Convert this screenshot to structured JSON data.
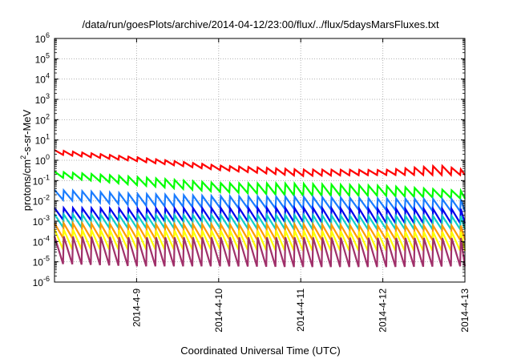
{
  "chart_data": {
    "type": "line",
    "title": "/data/run/goesPlots/archive/2014-04-12/23:00/flux/../flux/5daysMarsFluxes.txt",
    "xlabel": "Coordinated Universal Time (UTC)",
    "ylabel": {
      "prefix": "protons/cm",
      "superscript": "2",
      "suffix": "-s-sr-MeV"
    },
    "y_scale": "log",
    "ylim": [
      1e-06,
      1000000.0
    ],
    "y_ticks": [
      {
        "value": 1e-06,
        "base": "10",
        "exp": "-6"
      },
      {
        "value": 1e-05,
        "base": "10",
        "exp": "-5"
      },
      {
        "value": 0.0001,
        "base": "10",
        "exp": "-4"
      },
      {
        "value": 0.001,
        "base": "10",
        "exp": "-3"
      },
      {
        "value": 0.01,
        "base": "10",
        "exp": "-2"
      },
      {
        "value": 0.1,
        "base": "10",
        "exp": "-1"
      },
      {
        "value": 1.0,
        "base": "10",
        "exp": "0"
      },
      {
        "value": 10.0,
        "base": "10",
        "exp": "1"
      },
      {
        "value": 100.0,
        "base": "10",
        "exp": "2"
      },
      {
        "value": 1000.0,
        "base": "10",
        "exp": "3"
      },
      {
        "value": 10000.0,
        "base": "10",
        "exp": "4"
      },
      {
        "value": 100000.0,
        "base": "10",
        "exp": "5"
      },
      {
        "value": 1000000.0,
        "base": "10",
        "exp": "6"
      }
    ],
    "xlim": [
      "2014-04-08T00:00",
      "2014-04-13T00:00"
    ],
    "x_ticks": [
      {
        "value": "2014-04-09T00:00",
        "label": "2014-4-9"
      },
      {
        "value": "2014-04-10T00:00",
        "label": "2014-4-10"
      },
      {
        "value": "2014-04-11T00:00",
        "label": "2014-4-11"
      },
      {
        "value": "2014-04-12T00:00",
        "label": "2014-4-12"
      },
      {
        "value": "2014-04-13T00:00",
        "label": "2014-4-13"
      }
    ],
    "grid": true,
    "legend": "none",
    "sawtooth_period_hours": 2.7,
    "series": [
      {
        "color": "#ff0000",
        "peak": [
          [
            0,
            3.2
          ],
          [
            1,
            1.4
          ],
          [
            2,
            0.55
          ],
          [
            3,
            0.35
          ],
          [
            4,
            0.33
          ],
          [
            4.7,
            0.55
          ],
          [
            5,
            0.33
          ]
        ],
        "dip": [
          [
            0,
            2.0
          ],
          [
            1,
            0.9
          ],
          [
            2,
            0.33
          ],
          [
            3,
            0.17
          ],
          [
            4,
            0.19
          ],
          [
            5,
            0.19
          ]
        ]
      },
      {
        "color": "#00ff00",
        "peak": [
          [
            0,
            0.28
          ],
          [
            1,
            0.15
          ],
          [
            2,
            0.075
          ],
          [
            3,
            0.07
          ],
          [
            4,
            0.055
          ],
          [
            5,
            0.03
          ]
        ],
        "dip": [
          [
            0,
            0.15
          ],
          [
            1,
            0.06
          ],
          [
            2,
            0.028
          ],
          [
            3,
            0.018
          ],
          [
            4,
            0.018
          ],
          [
            5,
            0.013
          ]
        ]
      },
      {
        "color": "#1a7cff",
        "peak": [
          [
            0,
            0.035
          ],
          [
            1,
            0.022
          ],
          [
            2,
            0.017
          ],
          [
            3,
            0.016
          ],
          [
            4,
            0.013
          ],
          [
            5,
            0.012
          ]
        ],
        "dip": [
          [
            0,
            0.012
          ],
          [
            1,
            0.006
          ],
          [
            2,
            0.0045
          ],
          [
            3,
            0.004
          ],
          [
            4,
            0.0035
          ],
          [
            5,
            0.003
          ]
        ]
      },
      {
        "color": "#0000ee",
        "peak": [
          [
            0,
            0.0045
          ],
          [
            1,
            0.0042
          ],
          [
            2,
            0.0045
          ],
          [
            3,
            0.0045
          ],
          [
            4,
            0.004
          ],
          [
            5,
            0.004
          ]
        ],
        "dip": [
          [
            0,
            0.0012
          ],
          [
            1,
            0.001
          ],
          [
            2,
            0.001
          ],
          [
            3,
            0.0009
          ],
          [
            4,
            0.0008
          ],
          [
            5,
            0.0008
          ]
        ]
      },
      {
        "color": "#10cfc8",
        "peak": [
          [
            0,
            0.0022
          ],
          [
            1,
            0.002
          ],
          [
            2,
            0.002
          ],
          [
            3,
            0.002
          ],
          [
            4,
            0.0018
          ],
          [
            5,
            0.0018
          ]
        ],
        "dip": [
          [
            0,
            0.0005
          ],
          [
            1,
            0.00045
          ],
          [
            2,
            0.00045
          ],
          [
            3,
            0.0004
          ],
          [
            4,
            0.0004
          ],
          [
            5,
            0.0004
          ]
        ]
      },
      {
        "color": "#ff9900",
        "peak": [
          [
            0,
            0.0008
          ],
          [
            1,
            0.0007
          ],
          [
            2,
            0.0007
          ],
          [
            3,
            0.0007
          ],
          [
            4,
            0.0006
          ],
          [
            5,
            0.0006
          ]
        ],
        "dip": [
          [
            0,
            0.00015
          ],
          [
            1,
            0.00013
          ],
          [
            2,
            0.00013
          ],
          [
            3,
            0.00012
          ],
          [
            4,
            0.00012
          ],
          [
            5,
            0.00012
          ]
        ]
      },
      {
        "color": "#ffff00",
        "peak": [
          [
            0,
            0.0004
          ],
          [
            1,
            0.00035
          ],
          [
            2,
            0.00035
          ],
          [
            3,
            0.00035
          ],
          [
            4,
            0.0003
          ],
          [
            5,
            0.0003
          ]
        ],
        "dip": [
          [
            0,
            4e-05
          ],
          [
            1,
            4e-05
          ],
          [
            2,
            4e-05
          ],
          [
            3,
            3.5e-05
          ],
          [
            4,
            3.5e-05
          ],
          [
            5,
            3.5e-05
          ]
        ]
      },
      {
        "color": "#a0306a",
        "peak": [
          [
            0,
            0.00018
          ],
          [
            1,
            0.00016
          ],
          [
            2,
            0.00016
          ],
          [
            3,
            0.00016
          ],
          [
            4,
            0.00015
          ],
          [
            5,
            0.00015
          ]
        ],
        "dip": [
          [
            0,
            8e-06
          ],
          [
            1,
            6e-06
          ],
          [
            2,
            6e-06
          ],
          [
            3,
            5.5e-06
          ],
          [
            4,
            5.5e-06
          ],
          [
            5,
            6e-06
          ]
        ]
      }
    ]
  }
}
